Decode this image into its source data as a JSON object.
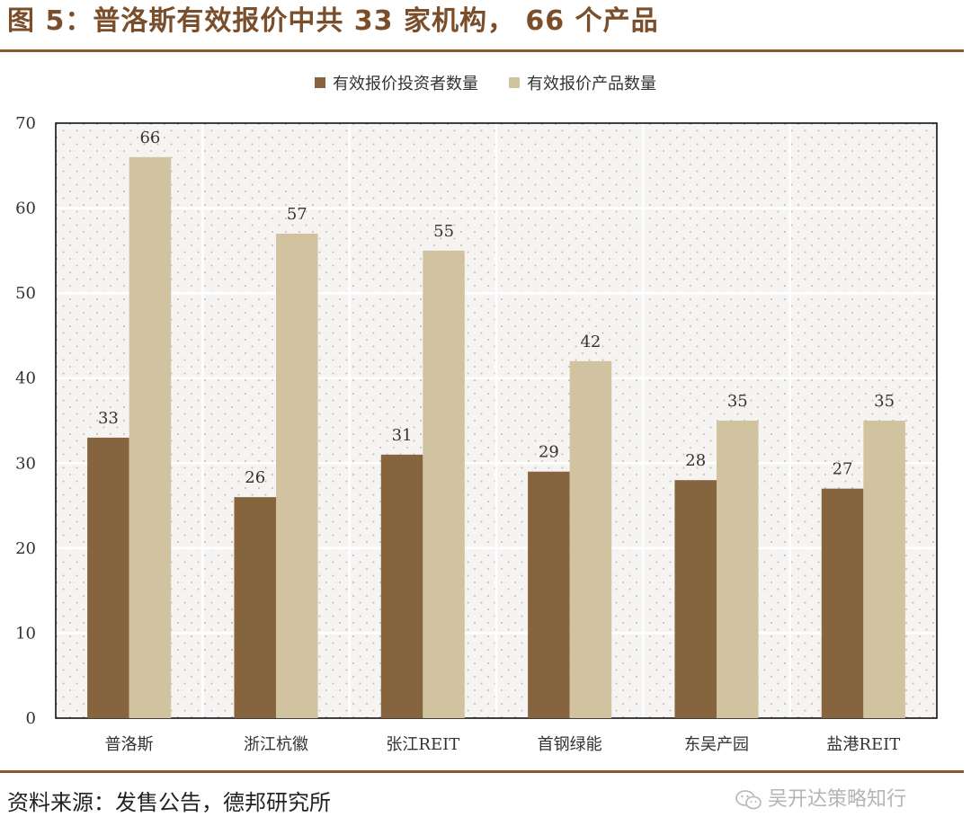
{
  "title": "图 5：普洛斯有效报价中共 33 家机构， 66 个产品",
  "source": "资料来源：发售公告，德邦研究所",
  "watermark": "吴开达策略知行",
  "colors": {
    "series1": "#85643e",
    "series2": "#d2c3a0",
    "title": "#7a4e2a",
    "rule": "#8a5a32",
    "plot_bg": "#f6f4f3",
    "grid": "#ffffff",
    "dots": "#c9b8a6"
  },
  "chart_data": {
    "type": "bar",
    "title": "",
    "xlabel": "",
    "ylabel": "",
    "categories": [
      "普洛斯",
      "浙江杭徽",
      "张江REIT",
      "首钢绿能",
      "东吴产园",
      "盐港REIT"
    ],
    "series": [
      {
        "name": "有效报价投资者数量",
        "values": [
          33,
          26,
          31,
          29,
          28,
          27
        ]
      },
      {
        "name": "有效报价产品数量",
        "values": [
          66,
          57,
          55,
          42,
          35,
          35
        ]
      }
    ],
    "ylim": [
      0,
      70
    ],
    "yticks": [
      0,
      10,
      20,
      30,
      40,
      50,
      60,
      70
    ],
    "grid": true,
    "legend_position": "top-center",
    "data_labels": true
  }
}
